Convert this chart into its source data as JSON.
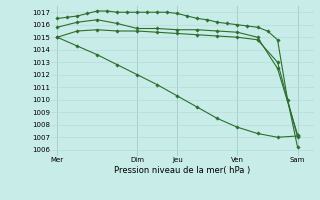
{
  "background_color": "#c8ece8",
  "grid_color": "#b8dbd6",
  "line_color": "#2d6e2d",
  "title": "Pression niveau de la mer( hPa )",
  "ylim": [
    1005.5,
    1017.5
  ],
  "yticks": [
    1006,
    1007,
    1008,
    1009,
    1010,
    1011,
    1012,
    1013,
    1014,
    1015,
    1016,
    1017
  ],
  "x_day_labels": [
    "Mer",
    "Dim",
    "Jeu",
    "Ven",
    "Sam"
  ],
  "x_day_positions": [
    0,
    4,
    6,
    9,
    12
  ],
  "vline_color": "#8ab8b4",
  "series": [
    {
      "x": [
        0,
        0.5,
        1,
        1.5,
        2,
        2.5,
        3,
        3.5,
        4,
        4.5,
        5,
        5.5,
        6,
        6.5,
        7,
        7.5,
        8,
        8.5,
        9,
        9.5,
        10,
        10.5,
        11,
        11.5,
        12
      ],
      "y": [
        1016.5,
        1016.6,
        1016.7,
        1016.9,
        1017.1,
        1017.1,
        1017.0,
        1017.0,
        1017.0,
        1017.0,
        1017.0,
        1017.0,
        1016.9,
        1016.7,
        1016.5,
        1016.4,
        1016.2,
        1016.1,
        1016.0,
        1015.9,
        1015.8,
        1015.5,
        1014.8,
        1010.0,
        1006.2
      ]
    },
    {
      "x": [
        0,
        1,
        2,
        3,
        4,
        5,
        6,
        7,
        8,
        9,
        10,
        11,
        12
      ],
      "y": [
        1015.8,
        1016.2,
        1016.4,
        1016.1,
        1015.7,
        1015.7,
        1015.6,
        1015.6,
        1015.5,
        1015.4,
        1015.0,
        1012.5,
        1007.2
      ]
    },
    {
      "x": [
        0,
        1,
        2,
        3,
        4,
        5,
        6,
        7,
        8,
        9,
        10,
        11,
        12
      ],
      "y": [
        1015.0,
        1015.5,
        1015.6,
        1015.5,
        1015.5,
        1015.4,
        1015.3,
        1015.2,
        1015.1,
        1015.0,
        1014.8,
        1013.0,
        1007.0
      ]
    },
    {
      "x": [
        0,
        1,
        2,
        3,
        4,
        5,
        6,
        7,
        8,
        9,
        10,
        11,
        12
      ],
      "y": [
        1015.0,
        1014.3,
        1013.6,
        1012.8,
        1012.0,
        1011.2,
        1010.3,
        1009.4,
        1008.5,
        1007.8,
        1007.3,
        1007.0,
        1007.1
      ]
    }
  ]
}
